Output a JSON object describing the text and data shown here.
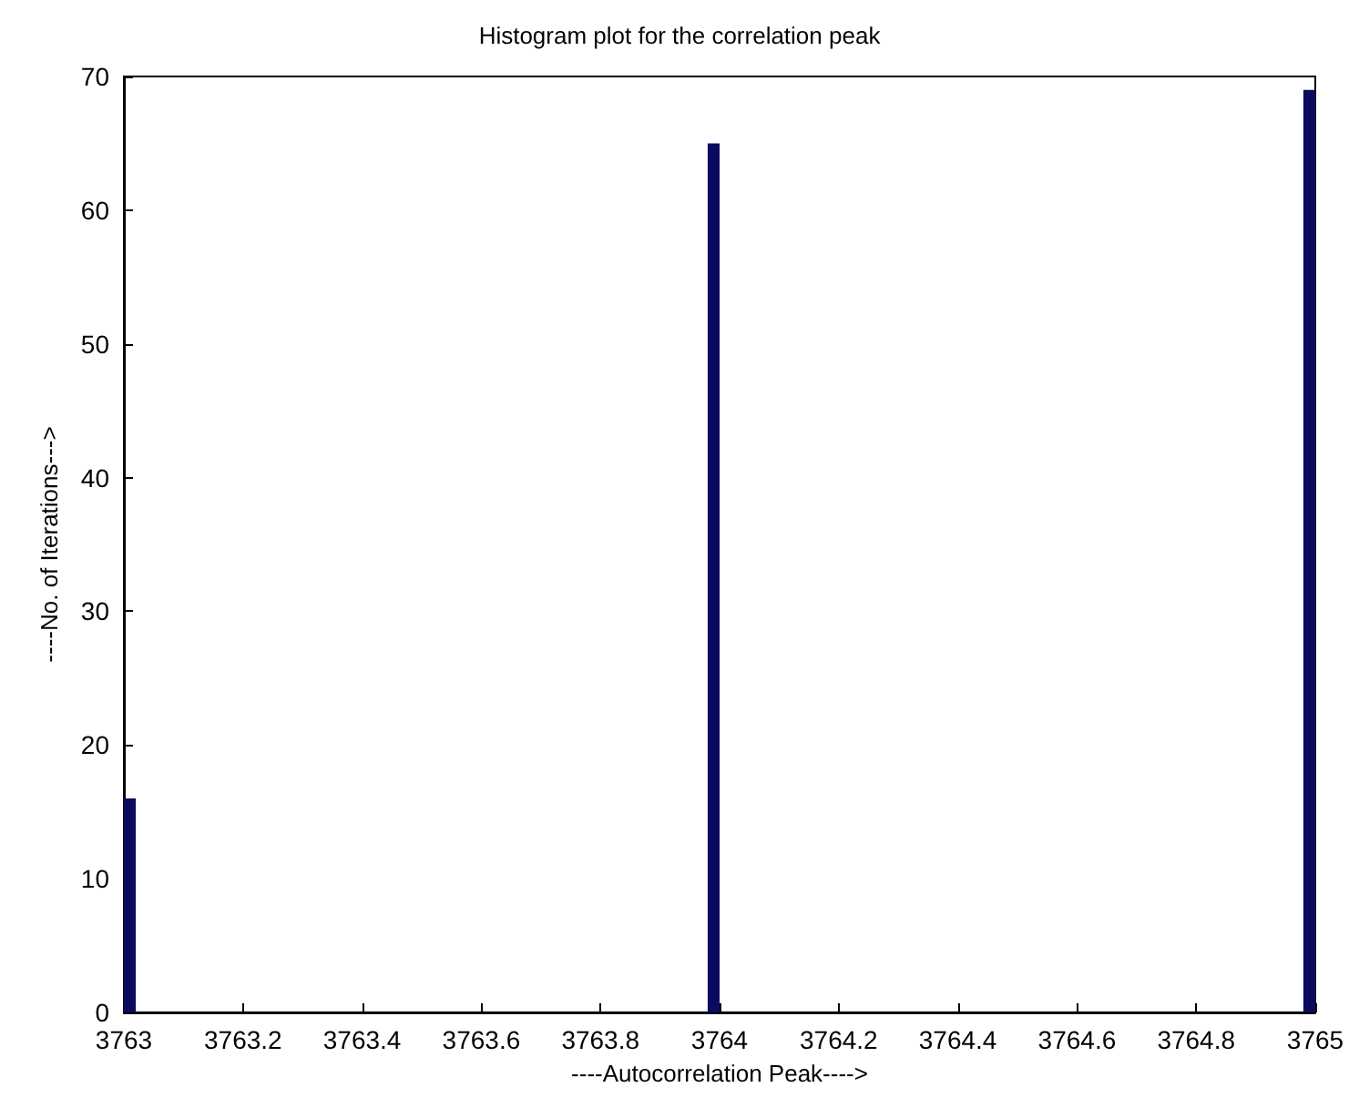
{
  "chart_data": {
    "type": "histogram",
    "title": "Histogram plot for the correlation peak",
    "xlabel": "----Autocorrelation Peak---->",
    "ylabel": "----No. of Iterations--->",
    "bins": [
      3763,
      3763.02,
      3763.04,
      3763.06,
      3763.08,
      3763.1,
      3763.12,
      3763.14,
      3763.16,
      3763.18,
      3763.2,
      3763.22,
      3763.24,
      3763.26,
      3763.28,
      3763.3,
      3763.32,
      3763.34,
      3763.36,
      3763.38,
      3763.4,
      3763.42,
      3763.44,
      3763.46,
      3763.48,
      3763.5,
      3763.52,
      3763.54,
      3763.56,
      3763.58,
      3763.6,
      3763.62,
      3763.64,
      3763.66,
      3763.68,
      3763.7,
      3763.72,
      3763.74,
      3763.76,
      3763.78,
      3763.8,
      3763.82,
      3763.84,
      3763.86,
      3763.88,
      3763.9,
      3763.92,
      3763.94,
      3763.96,
      3763.98,
      3764,
      3764.02,
      3764.04,
      3764.06,
      3764.08,
      3764.1,
      3764.12,
      3764.14,
      3764.16,
      3764.18,
      3764.2,
      3764.22,
      3764.24,
      3764.26,
      3764.28,
      3764.3,
      3764.32,
      3764.34,
      3764.36,
      3764.38,
      3764.4,
      3764.42,
      3764.44,
      3764.46,
      3764.48,
      3764.5,
      3764.52,
      3764.54,
      3764.56,
      3764.58,
      3764.6,
      3764.62,
      3764.64,
      3764.66,
      3764.68,
      3764.7,
      3764.72,
      3764.74,
      3764.76,
      3764.78,
      3764.8,
      3764.82,
      3764.84,
      3764.86,
      3764.88,
      3764.9,
      3764.92,
      3764.94,
      3764.96,
      3764.98,
      3765
    ],
    "values": [
      16,
      0,
      0,
      0,
      0,
      0,
      0,
      0,
      0,
      0,
      0,
      0,
      0,
      0,
      0,
      0,
      0,
      0,
      0,
      0,
      0,
      0,
      0,
      0,
      0,
      0,
      0,
      0,
      0,
      0,
      0,
      0,
      0,
      0,
      0,
      0,
      0,
      0,
      0,
      0,
      0,
      0,
      0,
      0,
      0,
      0,
      0,
      0,
      0,
      65,
      0,
      0,
      0,
      0,
      0,
      0,
      0,
      0,
      0,
      0,
      0,
      0,
      0,
      0,
      0,
      0,
      0,
      0,
      0,
      0,
      0,
      0,
      0,
      0,
      0,
      0,
      0,
      0,
      0,
      0,
      0,
      0,
      0,
      0,
      0,
      0,
      0,
      0,
      0,
      0,
      0,
      0,
      0,
      0,
      0,
      0,
      0,
      0,
      0,
      69
    ],
    "color": "#0a0a5e",
    "xlim": [
      3763,
      3765
    ],
    "xticks": [
      3763,
      3763.2,
      3763.4,
      3763.6,
      3763.8,
      3764,
      3764.2,
      3764.4,
      3764.6,
      3764.8,
      3765
    ],
    "ylim": [
      0,
      70
    ],
    "yticks": [
      0,
      10,
      20,
      30,
      40,
      50,
      60,
      70
    ],
    "grid": false
  }
}
